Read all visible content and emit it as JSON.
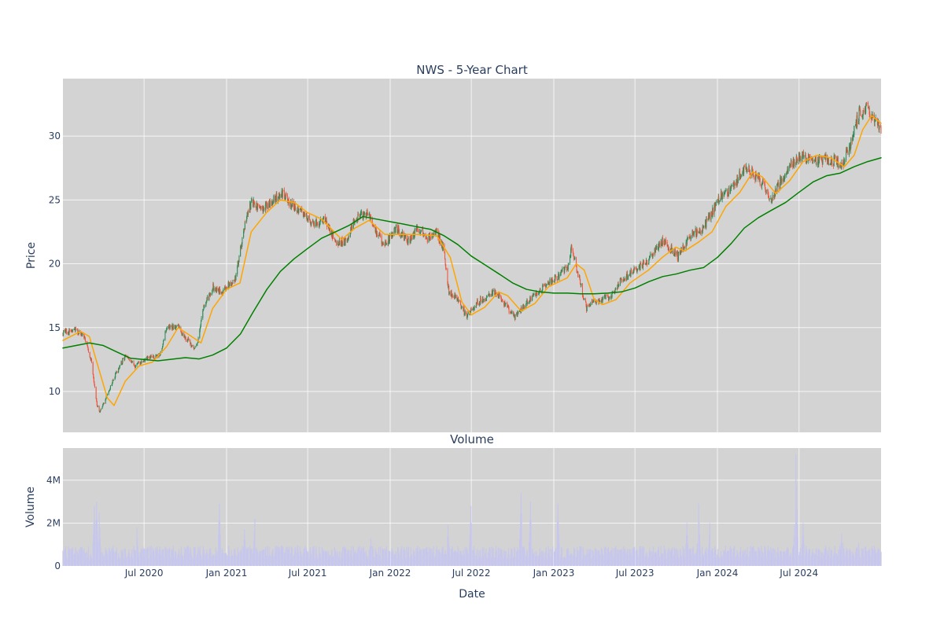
{
  "chart_data": [
    {
      "type": "candlestick",
      "title": "NWS - 5-Year Chart",
      "ylabel": "Price",
      "ylim": [
        6.8,
        34.5
      ],
      "x_range": [
        "2020-01-02",
        "2024-12-31"
      ],
      "yticks": [
        10,
        15,
        20,
        25,
        30
      ],
      "grid": true,
      "colors": {
        "background": "#d3d3d3",
        "increasing": "#2e8b57",
        "decreasing": "#ef553b",
        "sma_short": "#ffa500",
        "sma_long": "#008000"
      },
      "price_anchors": [
        [
          "2020-01-02",
          14.6
        ],
        [
          "2020-02-01",
          14.8
        ],
        [
          "2020-02-20",
          14.2
        ],
        [
          "2020-03-05",
          12.5
        ],
        [
          "2020-03-18",
          9.0
        ],
        [
          "2020-03-24",
          8.3
        ],
        [
          "2020-04-10",
          9.8
        ],
        [
          "2020-05-01",
          11.5
        ],
        [
          "2020-05-20",
          12.8
        ],
        [
          "2020-06-10",
          12.0
        ],
        [
          "2020-07-10",
          12.6
        ],
        [
          "2020-08-05",
          12.8
        ],
        [
          "2020-08-20",
          15.0
        ],
        [
          "2020-09-15",
          15.1
        ],
        [
          "2020-10-01",
          14.2
        ],
        [
          "2020-10-25",
          13.3
        ],
        [
          "2020-11-10",
          16.5
        ],
        [
          "2020-12-01",
          18.2
        ],
        [
          "2020-12-20",
          17.8
        ],
        [
          "2021-01-20",
          18.8
        ],
        [
          "2021-02-10",
          23.0
        ],
        [
          "2021-02-25",
          24.8
        ],
        [
          "2021-03-20",
          24.2
        ],
        [
          "2021-04-15",
          25.0
        ],
        [
          "2021-05-05",
          25.6
        ],
        [
          "2021-05-25",
          24.6
        ],
        [
          "2021-06-20",
          24.0
        ],
        [
          "2021-07-15",
          23.0
        ],
        [
          "2021-08-10",
          23.5
        ],
        [
          "2021-09-01",
          21.6
        ],
        [
          "2021-09-25",
          21.8
        ],
        [
          "2021-10-15",
          23.5
        ],
        [
          "2021-11-10",
          24.0
        ],
        [
          "2021-12-01",
          22.5
        ],
        [
          "2021-12-20",
          21.5
        ],
        [
          "2022-01-15",
          22.8
        ],
        [
          "2022-02-10",
          21.8
        ],
        [
          "2022-03-05",
          22.8
        ],
        [
          "2022-03-25",
          22.0
        ],
        [
          "2022-04-15",
          22.5
        ],
        [
          "2022-05-01",
          21.0
        ],
        [
          "2022-05-12",
          17.8
        ],
        [
          "2022-05-30",
          17.4
        ],
        [
          "2022-06-20",
          15.9
        ],
        [
          "2022-07-15",
          17.0
        ],
        [
          "2022-08-10",
          17.5
        ],
        [
          "2022-08-25",
          17.8
        ],
        [
          "2022-09-15",
          16.8
        ],
        [
          "2022-10-05",
          15.8
        ],
        [
          "2022-10-25",
          16.6
        ],
        [
          "2022-11-15",
          17.5
        ],
        [
          "2022-12-10",
          18.2
        ],
        [
          "2023-01-10",
          19.0
        ],
        [
          "2023-02-01",
          19.8
        ],
        [
          "2023-02-10",
          21.3
        ],
        [
          "2023-03-01",
          18.5
        ],
        [
          "2023-03-15",
          16.5
        ],
        [
          "2023-04-01",
          17.0
        ],
        [
          "2023-05-10",
          17.5
        ],
        [
          "2023-06-01",
          18.8
        ],
        [
          "2023-07-01",
          19.5
        ],
        [
          "2023-08-01",
          20.3
        ],
        [
          "2023-09-01",
          21.8
        ],
        [
          "2023-10-05",
          20.6
        ],
        [
          "2023-11-01",
          22.2
        ],
        [
          "2023-12-01",
          22.8
        ],
        [
          "2024-01-10",
          25.4
        ],
        [
          "2024-02-01",
          25.8
        ],
        [
          "2024-03-01",
          27.5
        ],
        [
          "2024-04-01",
          26.8
        ],
        [
          "2024-05-01",
          25.0
        ],
        [
          "2024-06-01",
          27.2
        ],
        [
          "2024-07-01",
          28.5
        ],
        [
          "2024-08-05",
          28.0
        ],
        [
          "2024-09-01",
          28.2
        ],
        [
          "2024-10-05",
          27.8
        ],
        [
          "2024-10-25",
          29.5
        ],
        [
          "2024-11-12",
          31.8
        ],
        [
          "2024-12-01",
          32.2
        ],
        [
          "2024-12-31",
          30.5
        ]
      ],
      "series": [
        {
          "name": "",
          "kind": "sma_short",
          "points": [
            [
              "2020-01-02",
              14.0
            ],
            [
              "2020-02-10",
              14.7
            ],
            [
              "2020-03-01",
              14.3
            ],
            [
              "2020-03-20",
              12.0
            ],
            [
              "2020-04-10",
              9.5
            ],
            [
              "2020-04-25",
              8.9
            ],
            [
              "2020-05-20",
              10.8
            ],
            [
              "2020-06-20",
              12.0
            ],
            [
              "2020-07-20",
              12.3
            ],
            [
              "2020-08-20",
              13.5
            ],
            [
              "2020-09-15",
              15.0
            ],
            [
              "2020-10-15",
              14.3
            ],
            [
              "2020-11-05",
              13.8
            ],
            [
              "2020-12-01",
              16.5
            ],
            [
              "2021-01-01",
              18.0
            ],
            [
              "2021-01-31",
              18.5
            ],
            [
              "2021-02-25",
              22.5
            ],
            [
              "2021-03-31",
              24.0
            ],
            [
              "2021-05-01",
              25.0
            ],
            [
              "2021-06-01",
              24.8
            ],
            [
              "2021-07-01",
              24.0
            ],
            [
              "2021-08-01",
              23.5
            ],
            [
              "2021-09-15",
              21.9
            ],
            [
              "2021-10-15",
              22.8
            ],
            [
              "2021-11-15",
              23.4
            ],
            [
              "2021-12-20",
              22.3
            ],
            [
              "2022-01-20",
              22.3
            ],
            [
              "2022-03-01",
              22.3
            ],
            [
              "2022-04-15",
              22.2
            ],
            [
              "2022-05-15",
              20.5
            ],
            [
              "2022-06-10",
              17.0
            ],
            [
              "2022-07-01",
              16.0
            ],
            [
              "2022-07-31",
              16.6
            ],
            [
              "2022-08-31",
              17.8
            ],
            [
              "2022-09-20",
              17.5
            ],
            [
              "2022-10-20",
              16.3
            ],
            [
              "2022-11-20",
              16.9
            ],
            [
              "2022-12-20",
              18.2
            ],
            [
              "2023-01-31",
              18.9
            ],
            [
              "2023-02-20",
              20.0
            ],
            [
              "2023-03-10",
              19.5
            ],
            [
              "2023-04-01",
              17.2
            ],
            [
              "2023-04-20",
              16.8
            ],
            [
              "2023-05-20",
              17.2
            ],
            [
              "2023-06-20",
              18.5
            ],
            [
              "2023-07-31",
              19.5
            ],
            [
              "2023-08-31",
              20.5
            ],
            [
              "2023-09-30",
              21.3
            ],
            [
              "2023-10-20",
              21.0
            ],
            [
              "2023-11-20",
              21.7
            ],
            [
              "2023-12-20",
              22.5
            ],
            [
              "2024-01-20",
              24.5
            ],
            [
              "2024-02-20",
              25.6
            ],
            [
              "2024-03-20",
              27.2
            ],
            [
              "2024-04-10",
              26.8
            ],
            [
              "2024-05-10",
              25.5
            ],
            [
              "2024-06-10",
              26.5
            ],
            [
              "2024-07-10",
              28.0
            ],
            [
              "2024-08-10",
              28.5
            ],
            [
              "2024-09-10",
              28.3
            ],
            [
              "2024-10-10",
              27.6
            ],
            [
              "2024-11-01",
              28.5
            ],
            [
              "2024-11-20",
              30.5
            ],
            [
              "2024-12-10",
              31.6
            ],
            [
              "2024-12-31",
              31.0
            ]
          ]
        },
        {
          "name": "",
          "kind": "sma_long",
          "points": [
            [
              "2020-01-02",
              13.4
            ],
            [
              "2020-03-01",
              13.8
            ],
            [
              "2020-04-01",
              13.6
            ],
            [
              "2020-05-01",
              13.1
            ],
            [
              "2020-06-01",
              12.6
            ],
            [
              "2020-08-01",
              12.4
            ],
            [
              "2020-10-01",
              12.65
            ],
            [
              "2020-11-01",
              12.55
            ],
            [
              "2020-12-01",
              12.85
            ],
            [
              "2021-01-01",
              13.4
            ],
            [
              "2021-02-01",
              14.5
            ],
            [
              "2021-03-01",
              16.2
            ],
            [
              "2021-04-01",
              18.0
            ],
            [
              "2021-05-01",
              19.4
            ],
            [
              "2021-06-01",
              20.4
            ],
            [
              "2021-07-01",
              21.2
            ],
            [
              "2021-08-01",
              22.0
            ],
            [
              "2021-09-01",
              22.5
            ],
            [
              "2021-10-01",
              23.0
            ],
            [
              "2021-11-01",
              23.7
            ],
            [
              "2021-12-01",
              23.5
            ],
            [
              "2022-01-01",
              23.3
            ],
            [
              "2022-02-01",
              23.1
            ],
            [
              "2022-03-01",
              22.9
            ],
            [
              "2022-04-01",
              22.7
            ],
            [
              "2022-05-01",
              22.2
            ],
            [
              "2022-06-01",
              21.5
            ],
            [
              "2022-07-01",
              20.6
            ],
            [
              "2022-08-01",
              19.9
            ],
            [
              "2022-09-01",
              19.2
            ],
            [
              "2022-10-01",
              18.5
            ],
            [
              "2022-11-01",
              18.0
            ],
            [
              "2022-12-01",
              17.8
            ],
            [
              "2023-01-01",
              17.7
            ],
            [
              "2023-02-01",
              17.7
            ],
            [
              "2023-03-01",
              17.65
            ],
            [
              "2023-04-01",
              17.65
            ],
            [
              "2023-05-01",
              17.7
            ],
            [
              "2023-06-01",
              17.8
            ],
            [
              "2023-07-01",
              18.1
            ],
            [
              "2023-08-01",
              18.6
            ],
            [
              "2023-09-01",
              19.0
            ],
            [
              "2023-10-01",
              19.2
            ],
            [
              "2023-11-01",
              19.5
            ],
            [
              "2023-12-01",
              19.7
            ],
            [
              "2024-01-01",
              20.5
            ],
            [
              "2024-02-01",
              21.6
            ],
            [
              "2024-03-01",
              22.8
            ],
            [
              "2024-04-01",
              23.6
            ],
            [
              "2024-05-01",
              24.2
            ],
            [
              "2024-06-01",
              24.8
            ],
            [
              "2024-07-01",
              25.6
            ],
            [
              "2024-08-01",
              26.4
            ],
            [
              "2024-09-01",
              26.9
            ],
            [
              "2024-10-01",
              27.1
            ],
            [
              "2024-11-01",
              27.6
            ],
            [
              "2024-12-01",
              28.0
            ],
            [
              "2024-12-31",
              28.3
            ]
          ]
        }
      ]
    },
    {
      "type": "bar",
      "title": "Volume",
      "xlabel": "Date",
      "ylabel": "Volume",
      "ylim": [
        0,
        5500000
      ],
      "yticks": [
        0,
        2000000,
        4000000
      ],
      "ytick_labels": [
        "0",
        "2M",
        "4M"
      ],
      "xticks": [
        "2020-07-01",
        "2021-01-01",
        "2021-07-01",
        "2022-01-01",
        "2022-07-01",
        "2023-01-01",
        "2023-07-01",
        "2024-01-01",
        "2024-07-01"
      ],
      "xtick_labels": [
        "Jul 2020",
        "Jan 2021",
        "Jul 2021",
        "Jan 2022",
        "Jul 2022",
        "Jan 2023",
        "Jul 2023",
        "Jan 2024",
        "Jul 2024"
      ],
      "grid": true,
      "bar_color": "#c6c6ee",
      "base_volume": 700000,
      "volume_spikes": [
        [
          "2020-03-12",
          2800000
        ],
        [
          "2020-03-17",
          3000000
        ],
        [
          "2020-03-23",
          2500000
        ],
        [
          "2020-06-15",
          1800000
        ],
        [
          "2020-12-16",
          2900000
        ],
        [
          "2021-02-10",
          1700000
        ],
        [
          "2021-03-05",
          2200000
        ],
        [
          "2021-11-20",
          1800000
        ],
        [
          "2022-05-10",
          1900000
        ],
        [
          "2022-06-30",
          2800000
        ],
        [
          "2022-10-20",
          3400000
        ],
        [
          "2022-11-10",
          3000000
        ],
        [
          "2023-01-10",
          2900000
        ],
        [
          "2023-10-25",
          2000000
        ],
        [
          "2023-11-20",
          2900000
        ],
        [
          "2023-12-15",
          2000000
        ],
        [
          "2024-06-24",
          5200000
        ],
        [
          "2024-07-10",
          2000000
        ],
        [
          "2024-10-05",
          2100000
        ],
        [
          "2024-11-10",
          1500000
        ]
      ]
    }
  ]
}
